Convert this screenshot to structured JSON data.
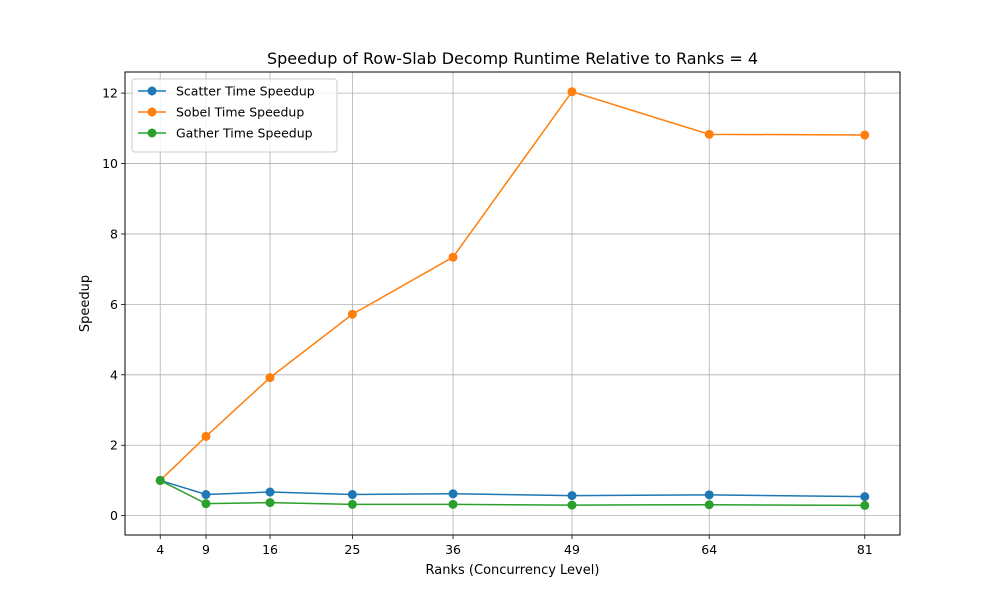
{
  "chart_data": {
    "type": "line",
    "title": "Speedup of Row-Slab Decomp Runtime Relative to Ranks = 4",
    "xlabel": "Ranks (Concurrency Level)",
    "ylabel": "Speedup",
    "x": [
      4,
      9,
      16,
      25,
      36,
      49,
      64,
      81
    ],
    "x_tick_labels": [
      "4",
      "9",
      "16",
      "25",
      "36",
      "49",
      "64",
      "81"
    ],
    "xlim": [
      0.15,
      84.85
    ],
    "y_ticks": [
      0,
      2,
      4,
      6,
      8,
      10,
      12
    ],
    "y_tick_labels": [
      "0",
      "2",
      "4",
      "6",
      "8",
      "10",
      "12"
    ],
    "ylim": [
      -0.55,
      12.6
    ],
    "grid": true,
    "legend_position": "upper left",
    "series": [
      {
        "name": "Scatter Time Speedup",
        "color": "#1f77b4",
        "marker": "circle",
        "values": [
          1.0,
          0.6,
          0.67,
          0.6,
          0.62,
          0.57,
          0.59,
          0.54
        ]
      },
      {
        "name": "Sobel Time Speedup",
        "color": "#ff7f0e",
        "marker": "circle",
        "values": [
          1.0,
          2.25,
          3.92,
          5.72,
          7.34,
          12.04,
          10.83,
          10.81
        ]
      },
      {
        "name": "Gather Time Speedup",
        "color": "#2ca02c",
        "marker": "circle",
        "values": [
          1.0,
          0.34,
          0.37,
          0.32,
          0.32,
          0.3,
          0.31,
          0.29
        ]
      }
    ]
  }
}
